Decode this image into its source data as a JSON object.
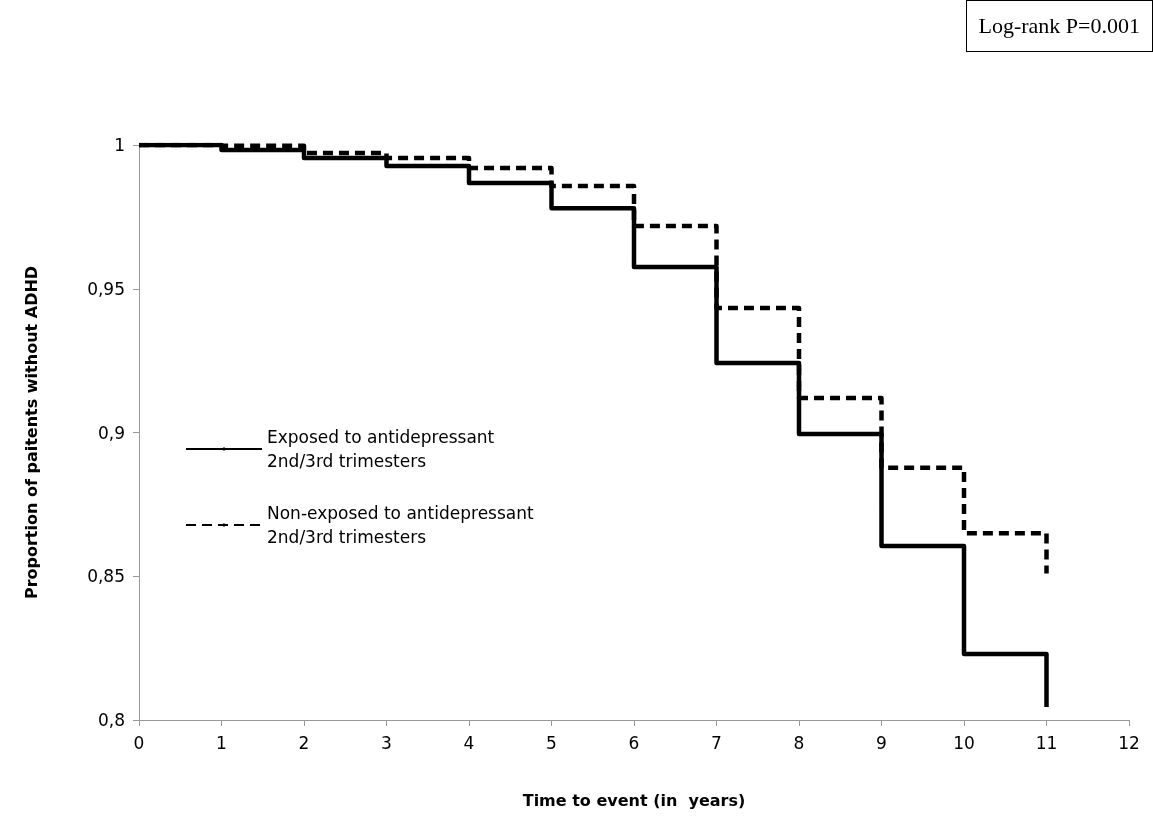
{
  "chart_data": {
    "type": "step",
    "xlabel": "Time to event (in  years)",
    "ylabel": "Proportion of paitents without ADHD",
    "annotations": [
      "Log-rank P=0.001"
    ],
    "xlim": [
      0,
      12
    ],
    "xticks": [
      0,
      1,
      2,
      3,
      4,
      5,
      6,
      7,
      8,
      9,
      10,
      11,
      12
    ],
    "ylim": [
      0.8,
      1
    ],
    "yticks": [
      {
        "value": 0.8,
        "label": "0,8"
      },
      {
        "value": 0.85,
        "label": "0,85"
      },
      {
        "value": 0.9,
        "label": "0,9"
      },
      {
        "value": 0.95,
        "label": "0,95"
      },
      {
        "value": 1,
        "label": "1"
      }
    ],
    "grid": false,
    "legend": "left",
    "marker": "none",
    "series": [
      {
        "name": "Exposed to antidepressant\n2nd/3rd trimesters",
        "color": "#000000",
        "line_style": "solid",
        "x": [
          0,
          1,
          2,
          3,
          4,
          5,
          6,
          7,
          8,
          9,
          10,
          11,
          11
        ],
        "values": [
          1,
          0.9983,
          0.9955,
          0.9927,
          0.9868,
          0.978,
          0.9576,
          0.9242,
          0.8995,
          0.8605,
          0.823,
          0.823,
          0.8045
        ]
      },
      {
        "name": "Non-exposed to antidepressant\n2nd/3rd trimesters",
        "color": "#000000",
        "line_style": "dashed",
        "x": [
          0,
          1,
          2,
          3,
          4,
          5,
          6,
          7,
          8,
          9,
          10,
          11,
          11
        ],
        "values": [
          1,
          0.9997,
          0.9972,
          0.9955,
          0.992,
          0.9857,
          0.9718,
          0.9433,
          0.912,
          0.8877,
          0.865,
          0.865,
          0.851
        ]
      }
    ]
  }
}
